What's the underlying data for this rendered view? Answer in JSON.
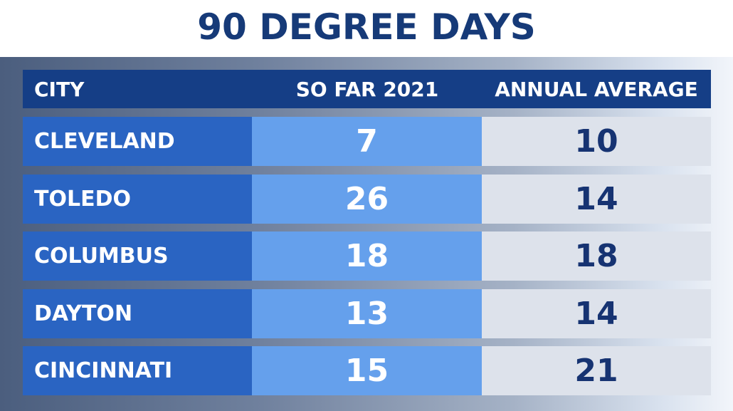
{
  "title": "90 DEGREE DAYS",
  "colors": {
    "title": "#163a78",
    "header_bg": "#153e86",
    "city_bg": "#2a64c2",
    "so_far_bg": "#65a0ec",
    "average_bg": "#dde2eb",
    "average_text": "#163372"
  },
  "chart_data": {
    "type": "table",
    "title": "90 DEGREE DAYS",
    "columns": [
      "CITY",
      "SO FAR 2021",
      "ANNUAL AVERAGE"
    ],
    "rows": [
      {
        "city": "CLEVELAND",
        "so_far_2021": 7,
        "annual_average": 10
      },
      {
        "city": "TOLEDO",
        "so_far_2021": 26,
        "annual_average": 14
      },
      {
        "city": "COLUMBUS",
        "so_far_2021": 18,
        "annual_average": 18
      },
      {
        "city": "DAYTON",
        "so_far_2021": 13,
        "annual_average": 14
      },
      {
        "city": "CINCINNATI",
        "so_far_2021": 15,
        "annual_average": 21
      }
    ]
  }
}
